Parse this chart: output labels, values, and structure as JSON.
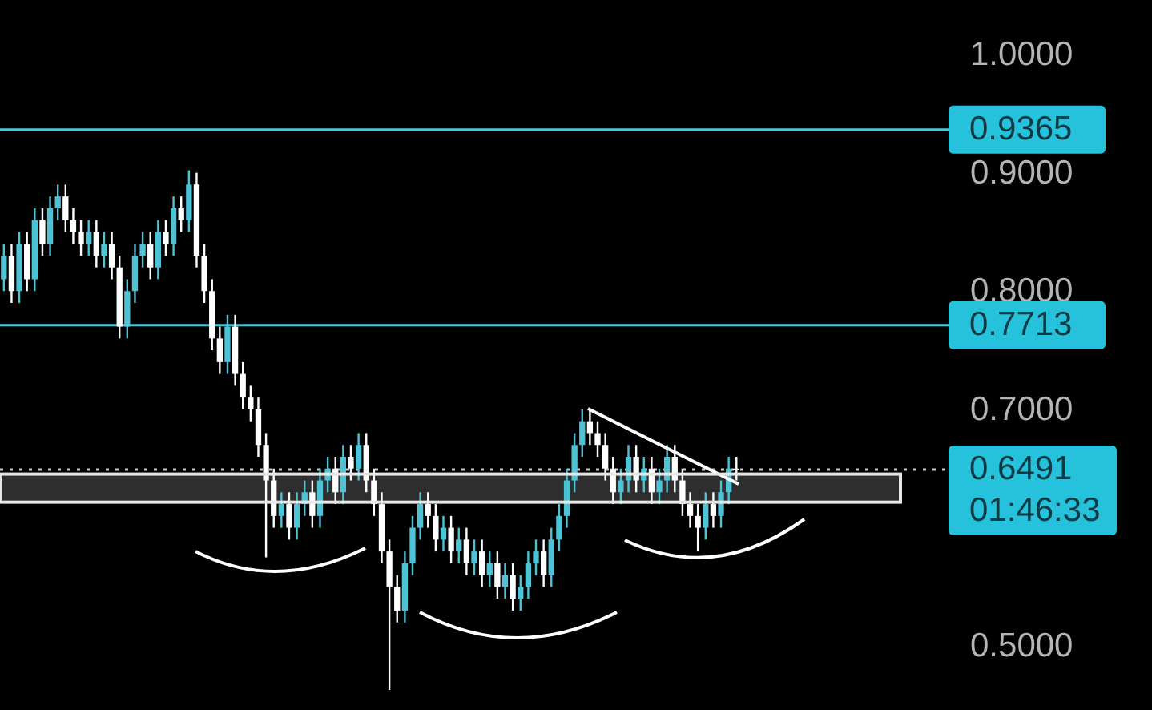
{
  "chart_data": {
    "type": "candlestick",
    "categories": [
      null,
      null,
      null,
      null,
      null,
      null,
      null,
      null,
      null,
      null,
      null,
      null,
      null,
      null,
      null,
      null,
      null,
      null,
      null,
      null,
      null,
      null,
      null,
      null,
      null,
      null,
      null,
      null,
      null,
      null,
      null,
      null,
      null,
      null,
      null,
      null,
      null,
      null,
      null,
      null,
      null,
      null,
      null,
      null,
      null,
      null,
      null,
      null,
      null,
      null,
      null,
      null,
      null,
      null,
      null,
      null,
      null,
      null,
      null,
      null,
      null,
      null,
      null,
      null,
      null,
      null,
      null,
      null,
      null,
      null,
      null,
      null,
      null,
      null,
      null,
      null,
      null,
      null,
      null,
      null,
      null,
      null,
      null,
      null,
      null,
      null,
      null,
      null,
      null,
      null,
      null,
      null,
      null,
      null,
      null,
      null,
      null,
      null,
      null,
      null,
      null,
      null,
      null,
      null,
      null,
      null,
      null,
      null,
      null,
      null,
      null,
      null,
      null,
      null,
      null,
      null,
      null,
      null,
      null,
      null,
      null,
      null,
      null
    ],
    "ohlc": [
      [
        0.81,
        0.84,
        0.8,
        0.83
      ],
      [
        0.83,
        0.84,
        0.79,
        0.8
      ],
      [
        0.8,
        0.85,
        0.79,
        0.84
      ],
      [
        0.84,
        0.85,
        0.8,
        0.81
      ],
      [
        0.81,
        0.87,
        0.8,
        0.86
      ],
      [
        0.86,
        0.87,
        0.83,
        0.84
      ],
      [
        0.84,
        0.88,
        0.83,
        0.87
      ],
      [
        0.87,
        0.89,
        0.86,
        0.88
      ],
      [
        0.88,
        0.89,
        0.85,
        0.86
      ],
      [
        0.86,
        0.87,
        0.84,
        0.85
      ],
      [
        0.85,
        0.86,
        0.83,
        0.84
      ],
      [
        0.84,
        0.86,
        0.83,
        0.85
      ],
      [
        0.85,
        0.86,
        0.82,
        0.83
      ],
      [
        0.83,
        0.85,
        0.82,
        0.84
      ],
      [
        0.84,
        0.85,
        0.81,
        0.82
      ],
      [
        0.82,
        0.83,
        0.76,
        0.77
      ],
      [
        0.77,
        0.81,
        0.76,
        0.8
      ],
      [
        0.8,
        0.84,
        0.79,
        0.83
      ],
      [
        0.83,
        0.85,
        0.82,
        0.84
      ],
      [
        0.84,
        0.85,
        0.81,
        0.82
      ],
      [
        0.82,
        0.86,
        0.81,
        0.85
      ],
      [
        0.85,
        0.86,
        0.83,
        0.84
      ],
      [
        0.84,
        0.88,
        0.83,
        0.87
      ],
      [
        0.87,
        0.88,
        0.85,
        0.86
      ],
      [
        0.86,
        0.902,
        0.85,
        0.89
      ],
      [
        0.89,
        0.9,
        0.82,
        0.83
      ],
      [
        0.83,
        0.84,
        0.79,
        0.8
      ],
      [
        0.8,
        0.81,
        0.75,
        0.76
      ],
      [
        0.76,
        0.77,
        0.73,
        0.74
      ],
      [
        0.74,
        0.78,
        0.73,
        0.77
      ],
      [
        0.77,
        0.78,
        0.72,
        0.73
      ],
      [
        0.73,
        0.74,
        0.7,
        0.71
      ],
      [
        0.71,
        0.72,
        0.69,
        0.7
      ],
      [
        0.7,
        0.71,
        0.66,
        0.67
      ],
      [
        0.67,
        0.68,
        0.575,
        0.64
      ],
      [
        0.64,
        0.65,
        0.6,
        0.61
      ],
      [
        0.61,
        0.63,
        0.6,
        0.62
      ],
      [
        0.62,
        0.63,
        0.59,
        0.6
      ],
      [
        0.6,
        0.63,
        0.59,
        0.62
      ],
      [
        0.62,
        0.64,
        0.61,
        0.63
      ],
      [
        0.63,
        0.64,
        0.6,
        0.61
      ],
      [
        0.61,
        0.65,
        0.6,
        0.64
      ],
      [
        0.64,
        0.66,
        0.63,
        0.65
      ],
      [
        0.65,
        0.66,
        0.62,
        0.63
      ],
      [
        0.63,
        0.67,
        0.62,
        0.66
      ],
      [
        0.66,
        0.67,
        0.64,
        0.65
      ],
      [
        0.65,
        0.68,
        0.64,
        0.67
      ],
      [
        0.67,
        0.68,
        0.63,
        0.64
      ],
      [
        0.64,
        0.65,
        0.61,
        0.62
      ],
      [
        0.62,
        0.63,
        0.57,
        0.58
      ],
      [
        0.58,
        0.59,
        0.463,
        0.55
      ],
      [
        0.55,
        0.56,
        0.52,
        0.53
      ],
      [
        0.53,
        0.58,
        0.52,
        0.57
      ],
      [
        0.57,
        0.61,
        0.56,
        0.6
      ],
      [
        0.6,
        0.63,
        0.59,
        0.62
      ],
      [
        0.62,
        0.63,
        0.6,
        0.61
      ],
      [
        0.61,
        0.62,
        0.58,
        0.59
      ],
      [
        0.59,
        0.61,
        0.58,
        0.6
      ],
      [
        0.6,
        0.61,
        0.57,
        0.58
      ],
      [
        0.58,
        0.6,
        0.57,
        0.59
      ],
      [
        0.59,
        0.6,
        0.56,
        0.57
      ],
      [
        0.57,
        0.59,
        0.56,
        0.58
      ],
      [
        0.58,
        0.59,
        0.55,
        0.56
      ],
      [
        0.56,
        0.58,
        0.55,
        0.57
      ],
      [
        0.57,
        0.58,
        0.54,
        0.55
      ],
      [
        0.55,
        0.57,
        0.54,
        0.56
      ],
      [
        0.56,
        0.57,
        0.53,
        0.54
      ],
      [
        0.54,
        0.56,
        0.53,
        0.55
      ],
      [
        0.55,
        0.58,
        0.54,
        0.57
      ],
      [
        0.57,
        0.59,
        0.56,
        0.58
      ],
      [
        0.58,
        0.59,
        0.55,
        0.56
      ],
      [
        0.56,
        0.6,
        0.55,
        0.59
      ],
      [
        0.59,
        0.62,
        0.58,
        0.61
      ],
      [
        0.61,
        0.65,
        0.6,
        0.64
      ],
      [
        0.64,
        0.68,
        0.63,
        0.67
      ],
      [
        0.67,
        0.7,
        0.66,
        0.69
      ],
      [
        0.69,
        0.7,
        0.67,
        0.68
      ],
      [
        0.68,
        0.69,
        0.66,
        0.67
      ],
      [
        0.67,
        0.68,
        0.64,
        0.65
      ],
      [
        0.65,
        0.66,
        0.62,
        0.63
      ],
      [
        0.63,
        0.65,
        0.62,
        0.64
      ],
      [
        0.64,
        0.67,
        0.63,
        0.66
      ],
      [
        0.66,
        0.67,
        0.63,
        0.64
      ],
      [
        0.64,
        0.66,
        0.63,
        0.65
      ],
      [
        0.65,
        0.66,
        0.62,
        0.63
      ],
      [
        0.63,
        0.65,
        0.62,
        0.64
      ],
      [
        0.64,
        0.67,
        0.63,
        0.66
      ],
      [
        0.66,
        0.67,
        0.63,
        0.64
      ],
      [
        0.64,
        0.65,
        0.61,
        0.62
      ],
      [
        0.62,
        0.63,
        0.6,
        0.61
      ],
      [
        0.61,
        0.62,
        0.58,
        0.6
      ],
      [
        0.6,
        0.63,
        0.59,
        0.62
      ],
      [
        0.62,
        0.63,
        0.6,
        0.61
      ],
      [
        0.61,
        0.64,
        0.6,
        0.63
      ],
      [
        0.63,
        0.66,
        0.62,
        0.65
      ],
      [
        0.65,
        0.66,
        0.64,
        0.6491
      ],
      null,
      null,
      null,
      null,
      null,
      null,
      null,
      null,
      null,
      null,
      null,
      null,
      null,
      null,
      null,
      null,
      null,
      null,
      null,
      null,
      null,
      null,
      null,
      null,
      null,
      null,
      null
    ],
    "colors": [
      "#4ec3d5",
      "#ffffff",
      "#4ec3d5",
      "#ffffff",
      "#4ec3d5",
      "#ffffff",
      "#4ec3d5",
      "#4ec3d5",
      "#ffffff",
      "#ffffff",
      "#ffffff",
      "#4ec3d5",
      "#ffffff",
      "#4ec3d5",
      "#ffffff",
      "#ffffff",
      "#4ec3d5",
      "#4ec3d5",
      "#4ec3d5",
      "#ffffff",
      "#4ec3d5",
      "#ffffff",
      "#4ec3d5",
      "#ffffff",
      "#4ec3d5",
      "#ffffff",
      "#ffffff",
      "#ffffff",
      "#ffffff",
      "#4ec3d5",
      "#ffffff",
      "#ffffff",
      "#ffffff",
      "#ffffff",
      "#ffffff",
      "#ffffff",
      "#4ec3d5",
      "#ffffff",
      "#4ec3d5",
      "#4ec3d5",
      "#ffffff",
      "#4ec3d5",
      "#4ec3d5",
      "#ffffff",
      "#4ec3d5",
      "#ffffff",
      "#4ec3d5",
      "#ffffff",
      "#ffffff",
      "#ffffff",
      "#ffffff",
      "#ffffff",
      "#4ec3d5",
      "#4ec3d5",
      "#4ec3d5",
      "#ffffff",
      "#ffffff",
      "#4ec3d5",
      "#ffffff",
      "#4ec3d5",
      "#ffffff",
      "#4ec3d5",
      "#ffffff",
      "#4ec3d5",
      "#ffffff",
      "#4ec3d5",
      "#ffffff",
      "#4ec3d5",
      "#4ec3d5",
      "#4ec3d5",
      "#ffffff",
      "#4ec3d5",
      "#4ec3d5",
      "#4ec3d5",
      "#4ec3d5",
      "#4ec3d5",
      "#ffffff",
      "#ffffff",
      "#ffffff",
      "#ffffff",
      "#4ec3d5",
      "#4ec3d5",
      "#ffffff",
      "#4ec3d5",
      "#ffffff",
      "#4ec3d5",
      "#4ec3d5",
      "#ffffff",
      "#ffffff",
      "#ffffff",
      "#ffffff",
      "#4ec3d5",
      "#ffffff",
      "#4ec3d5",
      "#4ec3d5",
      "#ffffff",
      null,
      null,
      null,
      null,
      null,
      null,
      null,
      null,
      null,
      null,
      null,
      null,
      null,
      null,
      null,
      null,
      null,
      null,
      null,
      null,
      null,
      null,
      null,
      null,
      null,
      null,
      null
    ],
    "ylim": [
      0.446,
      1.046
    ],
    "yticks": [
      {
        "value": 0.5,
        "label": "0.5000"
      },
      {
        "value": 0.7,
        "label": "0.7000"
      },
      {
        "value": 0.8,
        "label": "0.8000"
      },
      {
        "value": 0.9,
        "label": "0.9000"
      },
      {
        "value": 1.0,
        "label": "1.0000"
      }
    ],
    "tick_labels": "y",
    "grid": false,
    "ref_lines": [
      {
        "axis": "y",
        "value": 0.9365,
        "label": "0.9365",
        "color": "#4ec3d5"
      },
      {
        "axis": "y",
        "value": 0.7713,
        "label": "0.7713",
        "color": "#4ec3d5"
      },
      {
        "axis": "y",
        "value": 0.6491,
        "label": "0.6491",
        "color": "#cccccc",
        "line_style": "dotted"
      }
    ],
    "bands": [
      {
        "axis": "y",
        "from": 0.623,
        "to": 0.644,
        "color": "#2e2e2e"
      }
    ],
    "annotations": [
      "01:46:33"
    ]
  }
}
